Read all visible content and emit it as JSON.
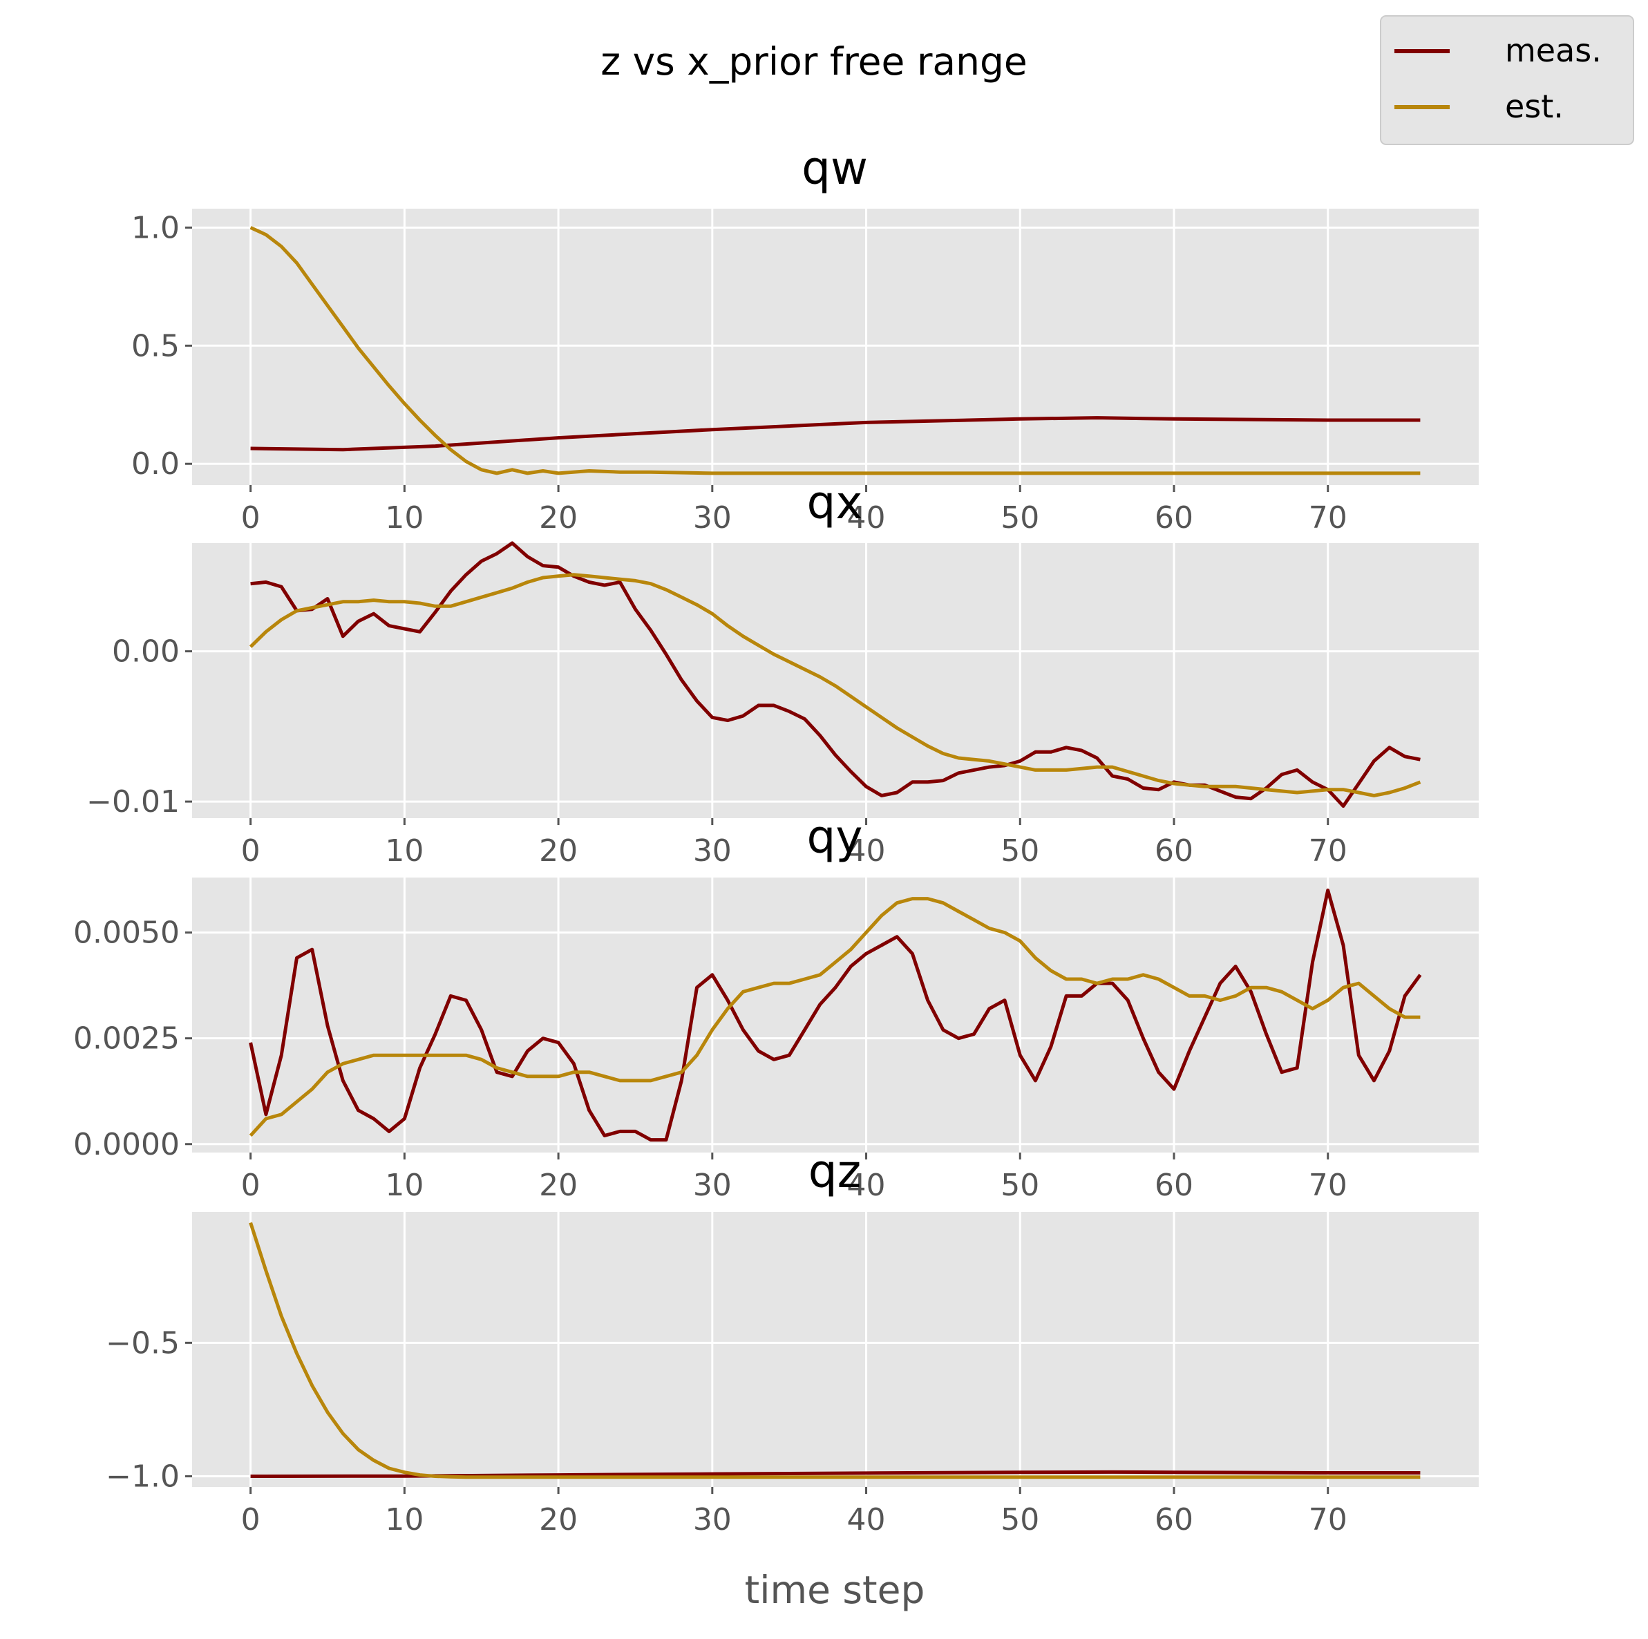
{
  "chart_data": {
    "type": "line",
    "title": "z vs x_prior free range",
    "xlabel": "time step",
    "grid": true,
    "legend": {
      "placement": "top-right",
      "entries": [
        {
          "name": "meas.",
          "color": "#800000"
        },
        {
          "name": "est.",
          "color": "#b8860b"
        }
      ]
    },
    "colors": {
      "background": "#e5e5e5",
      "grid": "#ffffff",
      "meas": "#800000",
      "est": "#b8860b"
    },
    "x_ticks": [
      "0",
      "10",
      "20",
      "30",
      "40",
      "50",
      "60",
      "70"
    ],
    "xlim": [
      -3.8,
      79.8
    ],
    "panels": [
      {
        "title": "qw",
        "ylim": [
          -0.09,
          1.08
        ],
        "y_ticks": [
          {
            "value": 0.0,
            "label": "0.0"
          },
          {
            "value": 0.5,
            "label": "0.5"
          },
          {
            "value": 1.0,
            "label": "1.0"
          }
        ],
        "series": [
          {
            "name": "meas.",
            "key": "meas",
            "x": [
              0,
              6,
              12,
              20,
              30,
              40,
              50,
              55,
              60,
              70,
              76
            ],
            "values": [
              0.065,
              0.06,
              0.075,
              0.11,
              0.145,
              0.175,
              0.19,
              0.195,
              0.19,
              0.185,
              0.185
            ]
          },
          {
            "name": "est.",
            "key": "est",
            "x": [
              0,
              1,
              2,
              3,
              4,
              5,
              6,
              7,
              8,
              9,
              10,
              11,
              12,
              13,
              14,
              15,
              16,
              17,
              18,
              19,
              20,
              22,
              24,
              26,
              30,
              40,
              50,
              60,
              70,
              76
            ],
            "values": [
              1.0,
              0.97,
              0.92,
              0.85,
              0.76,
              0.67,
              0.58,
              0.49,
              0.41,
              0.33,
              0.255,
              0.185,
              0.12,
              0.06,
              0.01,
              -0.025,
              -0.04,
              -0.025,
              -0.04,
              -0.03,
              -0.04,
              -0.03,
              -0.035,
              -0.035,
              -0.04,
              -0.04,
              -0.04,
              -0.04,
              -0.04,
              -0.04
            ]
          }
        ]
      },
      {
        "title": "qx",
        "ylim": [
          -0.0111,
          0.0072
        ],
        "y_ticks": [
          {
            "value": 0.0,
            "label": "0.00"
          },
          {
            "value": -0.01,
            "label": "−0.01"
          }
        ],
        "series": [
          {
            "name": "meas.",
            "key": "meas",
            "x": [
              0,
              1,
              2,
              3,
              4,
              5,
              6,
              7,
              8,
              9,
              10,
              11,
              12,
              13,
              14,
              15,
              16,
              17,
              18,
              19,
              20,
              21,
              22,
              23,
              24,
              25,
              26,
              27,
              28,
              29,
              30,
              31,
              32,
              33,
              34,
              35,
              36,
              37,
              38,
              39,
              40,
              41,
              42,
              43,
              44,
              45,
              46,
              47,
              48,
              49,
              50,
              51,
              52,
              53,
              54,
              55,
              56,
              57,
              58,
              59,
              60,
              61,
              62,
              63,
              64,
              65,
              66,
              67,
              68,
              69,
              70,
              71,
              72,
              73,
              74,
              75,
              76
            ],
            "values": [
              0.0045,
              0.0046,
              0.0043,
              0.0027,
              0.0028,
              0.0035,
              0.001,
              0.002,
              0.0025,
              0.0017,
              0.0015,
              0.0013,
              0.0026,
              0.004,
              0.0051,
              0.006,
              0.0065,
              0.0072,
              0.0063,
              0.0057,
              0.0056,
              0.005,
              0.0046,
              0.0044,
              0.0046,
              0.0028,
              0.0014,
              -0.0002,
              -0.0019,
              -0.0033,
              -0.0044,
              -0.0046,
              -0.0043,
              -0.0036,
              -0.0036,
              -0.004,
              -0.0045,
              -0.0056,
              -0.0069,
              -0.008,
              -0.009,
              -0.0096,
              -0.0094,
              -0.0087,
              -0.0087,
              -0.0086,
              -0.0081,
              -0.0079,
              -0.0077,
              -0.0076,
              -0.0073,
              -0.0067,
              -0.0067,
              -0.0064,
              -0.0066,
              -0.0071,
              -0.0083,
              -0.0085,
              -0.0091,
              -0.0092,
              -0.0087,
              -0.0089,
              -0.0089,
              -0.0093,
              -0.0097,
              -0.0098,
              -0.0091,
              -0.0082,
              -0.0079,
              -0.0087,
              -0.0092,
              -0.0103,
              -0.0088,
              -0.0073,
              -0.0064,
              -0.007,
              -0.0072
            ]
          },
          {
            "name": "est.",
            "key": "est",
            "x": [
              0,
              1,
              2,
              3,
              4,
              5,
              6,
              7,
              8,
              9,
              10,
              11,
              12,
              13,
              14,
              15,
              16,
              17,
              18,
              19,
              20,
              21,
              22,
              23,
              24,
              25,
              26,
              27,
              28,
              29,
              30,
              31,
              32,
              33,
              34,
              35,
              36,
              37,
              38,
              39,
              40,
              41,
              42,
              43,
              44,
              45,
              46,
              47,
              48,
              49,
              50,
              51,
              52,
              53,
              54,
              55,
              56,
              57,
              58,
              59,
              60,
              61,
              62,
              63,
              64,
              65,
              66,
              67,
              68,
              69,
              70,
              71,
              72,
              73,
              74,
              75,
              76
            ],
            "values": [
              0.0003,
              0.0013,
              0.0021,
              0.0027,
              0.0029,
              0.0031,
              0.0033,
              0.0033,
              0.0034,
              0.0033,
              0.0033,
              0.0032,
              0.003,
              0.003,
              0.0033,
              0.0036,
              0.0039,
              0.0042,
              0.0046,
              0.0049,
              0.005,
              0.0051,
              0.005,
              0.0049,
              0.0048,
              0.0047,
              0.0045,
              0.0041,
              0.0036,
              0.0031,
              0.0025,
              0.0017,
              0.001,
              0.0004,
              -0.0002,
              -0.0007,
              -0.0012,
              -0.0017,
              -0.0023,
              -0.003,
              -0.0037,
              -0.0044,
              -0.0051,
              -0.0057,
              -0.0063,
              -0.0068,
              -0.0071,
              -0.0072,
              -0.0073,
              -0.0075,
              -0.0077,
              -0.0079,
              -0.0079,
              -0.0079,
              -0.0078,
              -0.0077,
              -0.0077,
              -0.008,
              -0.0083,
              -0.0086,
              -0.0088,
              -0.0089,
              -0.009,
              -0.009,
              -0.009,
              -0.0091,
              -0.0092,
              -0.0093,
              -0.0094,
              -0.0093,
              -0.0092,
              -0.0092,
              -0.0094,
              -0.0096,
              -0.0094,
              -0.0091,
              -0.0087
            ]
          }
        ]
      },
      {
        "title": "qy",
        "ylim": [
          -0.0002,
          0.0063
        ],
        "y_ticks": [
          {
            "value": 0.0,
            "label": "0.0000"
          },
          {
            "value": 0.0025,
            "label": "0.0025"
          },
          {
            "value": 0.005,
            "label": "0.0050"
          }
        ],
        "series": [
          {
            "name": "meas.",
            "key": "meas",
            "x": [
              0,
              1,
              2,
              3,
              4,
              5,
              6,
              7,
              8,
              9,
              10,
              11,
              12,
              13,
              14,
              15,
              16,
              17,
              18,
              19,
              20,
              21,
              22,
              23,
              24,
              25,
              26,
              27,
              28,
              29,
              30,
              31,
              32,
              33,
              34,
              35,
              36,
              37,
              38,
              39,
              40,
              41,
              42,
              43,
              44,
              45,
              46,
              47,
              48,
              49,
              50,
              51,
              52,
              53,
              54,
              55,
              56,
              57,
              58,
              59,
              60,
              61,
              62,
              63,
              64,
              65,
              66,
              67,
              68,
              69,
              70,
              71,
              72,
              73,
              74,
              75,
              76
            ],
            "values": [
              0.0024,
              0.0007,
              0.0021,
              0.0044,
              0.0046,
              0.0028,
              0.0015,
              0.0008,
              0.0006,
              0.0003,
              0.0006,
              0.0018,
              0.0026,
              0.0035,
              0.0034,
              0.0027,
              0.0017,
              0.0016,
              0.0022,
              0.0025,
              0.0024,
              0.0019,
              0.0008,
              0.0002,
              0.0003,
              0.0003,
              0.0001,
              0.0001,
              0.0015,
              0.0037,
              0.004,
              0.0034,
              0.0027,
              0.0022,
              0.002,
              0.0021,
              0.0027,
              0.0033,
              0.0037,
              0.0042,
              0.0045,
              0.0047,
              0.0049,
              0.0045,
              0.0034,
              0.0027,
              0.0025,
              0.0026,
              0.0032,
              0.0034,
              0.0021,
              0.0015,
              0.0023,
              0.0035,
              0.0035,
              0.0038,
              0.0038,
              0.0034,
              0.0025,
              0.0017,
              0.0013,
              0.0022,
              0.003,
              0.0038,
              0.0042,
              0.0036,
              0.0026,
              0.0017,
              0.0018,
              0.0043,
              0.006,
              0.0047,
              0.0021,
              0.0015,
              0.0022,
              0.0035,
              0.004
            ]
          },
          {
            "name": "est.",
            "key": "est",
            "x": [
              0,
              1,
              2,
              3,
              4,
              5,
              6,
              7,
              8,
              9,
              10,
              11,
              12,
              13,
              14,
              15,
              16,
              17,
              18,
              19,
              20,
              21,
              22,
              23,
              24,
              25,
              26,
              27,
              28,
              29,
              30,
              31,
              32,
              33,
              34,
              35,
              36,
              37,
              38,
              39,
              40,
              41,
              42,
              43,
              44,
              45,
              46,
              47,
              48,
              49,
              50,
              51,
              52,
              53,
              54,
              55,
              56,
              57,
              58,
              59,
              60,
              61,
              62,
              63,
              64,
              65,
              66,
              67,
              68,
              69,
              70,
              71,
              72,
              73,
              74,
              75,
              76
            ],
            "values": [
              0.0002,
              0.0006,
              0.0007,
              0.001,
              0.0013,
              0.0017,
              0.0019,
              0.002,
              0.0021,
              0.0021,
              0.0021,
              0.0021,
              0.0021,
              0.0021,
              0.0021,
              0.002,
              0.0018,
              0.0017,
              0.0016,
              0.0016,
              0.0016,
              0.0017,
              0.0017,
              0.0016,
              0.0015,
              0.0015,
              0.0015,
              0.0016,
              0.0017,
              0.0021,
              0.0027,
              0.0032,
              0.0036,
              0.0037,
              0.0038,
              0.0038,
              0.0039,
              0.004,
              0.0043,
              0.0046,
              0.005,
              0.0054,
              0.0057,
              0.0058,
              0.0058,
              0.0057,
              0.0055,
              0.0053,
              0.0051,
              0.005,
              0.0048,
              0.0044,
              0.0041,
              0.0039,
              0.0039,
              0.0038,
              0.0039,
              0.0039,
              0.004,
              0.0039,
              0.0037,
              0.0035,
              0.0035,
              0.0034,
              0.0035,
              0.0037,
              0.0037,
              0.0036,
              0.0034,
              0.0032,
              0.0034,
              0.0037,
              0.0038,
              0.0035,
              0.0032,
              0.003,
              0.003
            ]
          }
        ]
      },
      {
        "title": "qz",
        "ylim": [
          -1.04,
          -0.01
        ],
        "y_ticks": [
          {
            "value": -0.5,
            "label": "−0.5"
          },
          {
            "value": -1.0,
            "label": "−1.0"
          }
        ],
        "series": [
          {
            "name": "meas.",
            "key": "meas",
            "x": [
              0,
              10,
              20,
              30,
              40,
              50,
              56,
              60,
              70,
              76
            ],
            "values": [
              -1.0,
              -0.999,
              -0.995,
              -0.991,
              -0.988,
              -0.985,
              -0.984,
              -0.985,
              -0.987,
              -0.987
            ]
          },
          {
            "name": "est.",
            "key": "est",
            "x": [
              0,
              1,
              2,
              3,
              4,
              5,
              6,
              7,
              8,
              9,
              10,
              11,
              12,
              13,
              14,
              15,
              20,
              30,
              40,
              50,
              60,
              70,
              76
            ],
            "values": [
              -0.05,
              -0.23,
              -0.4,
              -0.54,
              -0.66,
              -0.76,
              -0.84,
              -0.9,
              -0.94,
              -0.97,
              -0.985,
              -0.995,
              -1.0,
              -1.002,
              -1.003,
              -1.003,
              -1.003,
              -1.003,
              -1.003,
              -1.003,
              -1.003,
              -1.003,
              -1.003
            ]
          }
        ]
      }
    ]
  }
}
